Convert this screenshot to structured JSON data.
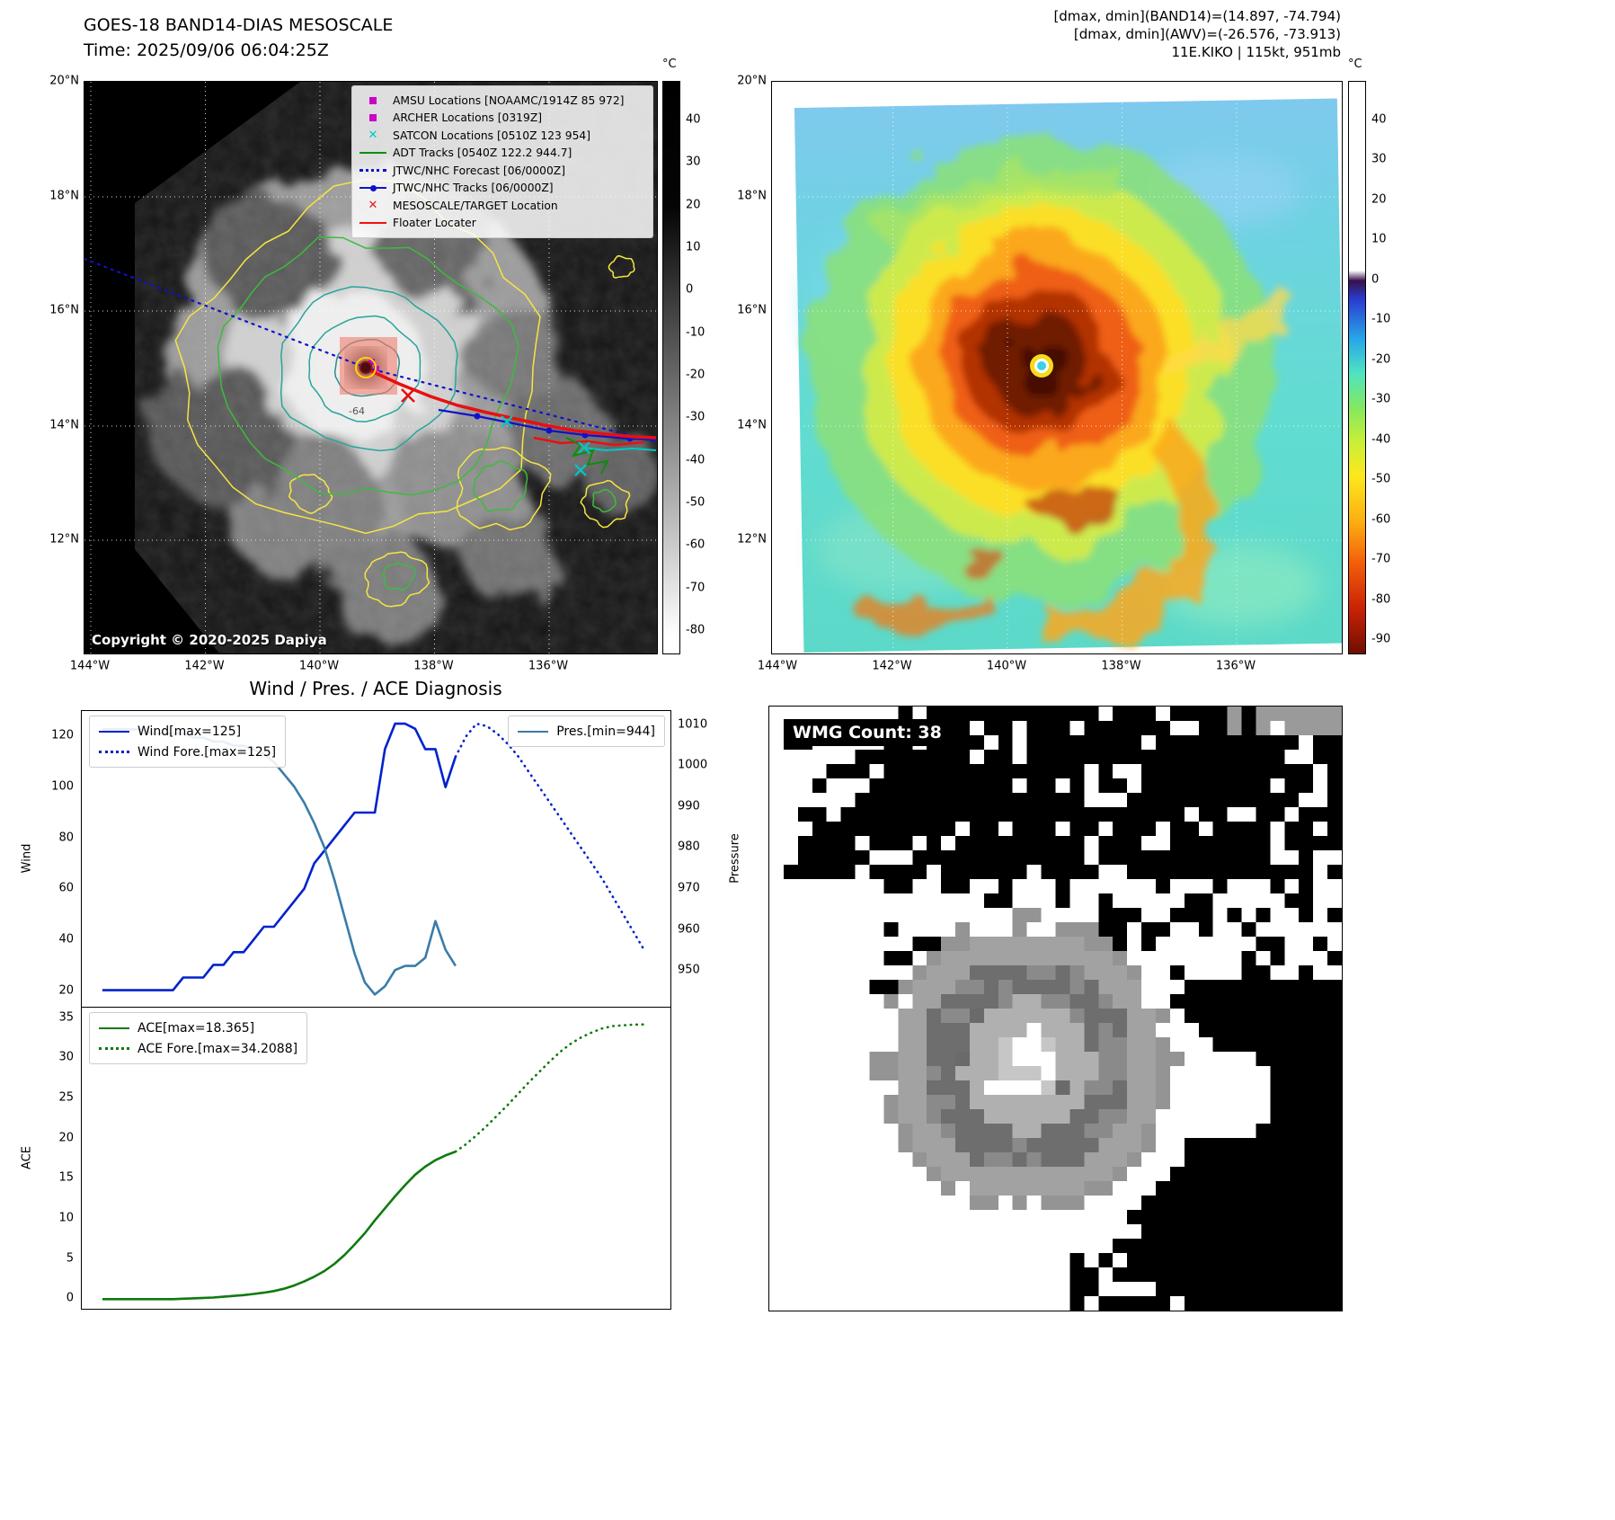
{
  "goes_panel": {
    "title": "GOES-18 BAND14-DIAS MESOSCALE",
    "time_line": "Time: 2025/09/06 06:04:25Z",
    "copyright": "Copyright © 2020-2025 Dapiya",
    "contour_label": "-64",
    "colorbar_unit": "°C",
    "colorbar_ticks": [
      40,
      30,
      20,
      10,
      0,
      -10,
      -20,
      -30,
      -40,
      -50,
      -60,
      -70,
      -80
    ],
    "lat_ticks": [
      "20°N",
      "18°N",
      "16°N",
      "14°N",
      "12°N"
    ],
    "lon_ticks": [
      "144°W",
      "142°W",
      "140°W",
      "138°W",
      "136°W"
    ],
    "legend": [
      {
        "label": "AMSU Locations [NOAAMC/1914Z 85 972]",
        "marker": "square",
        "color": "#c800c8"
      },
      {
        "label": "ARCHER Locations [0319Z]",
        "marker": "square",
        "color": "#c800c8"
      },
      {
        "label": "SATCON Locations [0510Z 123 954]",
        "marker": "x",
        "color": "#00c8c8"
      },
      {
        "label": "ADT Tracks [0540Z 122.2 944.7]",
        "marker": "line",
        "color": "#0a8f0a"
      },
      {
        "label": "JTWC/NHC Forecast [06/0000Z]",
        "marker": "dotted-line",
        "color": "#1111cc"
      },
      {
        "label": "JTWC/NHC Tracks [06/0000Z]",
        "marker": "line-dot",
        "color": "#1111cc"
      },
      {
        "label": "MESOSCALE/TARGET Location",
        "marker": "x",
        "color": "#ee1111"
      },
      {
        "label": "Floater Locater",
        "marker": "line",
        "color": "#ee1111"
      }
    ]
  },
  "awv_panel": {
    "header_lines": [
      "[dmax, dmin](BAND14)=(14.897, -74.794)",
      "[dmax, dmin](AWV)=(-26.576, -73.913)",
      "11E.KIKO | 115kt, 951mb"
    ],
    "colorbar_unit": "°C",
    "colorbar_ticks": [
      40,
      30,
      20,
      10,
      0,
      -10,
      -20,
      -30,
      -40,
      -50,
      -60,
      -70,
      -80,
      -90
    ],
    "lat_ticks": [
      "20°N",
      "18°N",
      "16°N",
      "14°N",
      "12°N"
    ],
    "lon_ticks": [
      "144°W",
      "142°W",
      "140°W",
      "138°W",
      "136°W"
    ]
  },
  "wmg_panel": {
    "label": "WMG Count: 38"
  },
  "chart_data": [
    {
      "type": "line",
      "title": "Wind / Pres. / ACE Diagnosis",
      "ylabel_left": "Wind",
      "ylabel_right": "Pressure",
      "ylim_left": [
        13.5,
        130
      ],
      "ylim_right": [
        941,
        1013.5
      ],
      "yticks_left": [
        20,
        40,
        60,
        80,
        100,
        120
      ],
      "yticks_right": [
        950,
        960,
        970,
        980,
        990,
        1000,
        1010
      ],
      "legend_position": "upper-left and upper-right",
      "series": [
        {
          "name": "Wind[max=125]",
          "axis": "left",
          "style": "solid",
          "color": "#0022cc",
          "x_start": 3.5,
          "x_end": 63.5,
          "y": [
            20,
            20,
            20,
            20,
            20,
            20,
            20,
            20,
            25,
            25,
            25,
            30,
            30,
            35,
            35,
            40,
            45,
            45,
            50,
            55,
            60,
            70,
            75,
            80,
            85,
            90,
            90,
            90,
            115,
            125,
            125,
            123,
            115,
            115,
            100,
            112
          ]
        },
        {
          "name": "Wind Fore.[max=125]",
          "axis": "left",
          "style": "dotted",
          "color": "#0022cc",
          "x_start": 63.5,
          "x_end": 95.5,
          "y": [
            112,
            120,
            125,
            124,
            121,
            117,
            112,
            106,
            100,
            94,
            88,
            82,
            76,
            70,
            64,
            57,
            50,
            43,
            36
          ]
        },
        {
          "name": "Pres.[min=944]",
          "axis": "right",
          "style": "solid",
          "color": "#3a7ca8",
          "x_start": 3.5,
          "x_end": 63.5,
          "y": [
            1009,
            1009,
            1009,
            1009,
            1009,
            1008,
            1008,
            1008,
            1008,
            1007,
            1007,
            1006,
            1006,
            1005,
            1005,
            1004,
            1003,
            1001,
            998,
            995,
            991,
            986,
            980,
            972,
            963,
            954,
            947,
            944,
            946,
            950,
            951,
            951,
            953,
            962,
            955,
            951
          ]
        }
      ]
    },
    {
      "type": "line",
      "ylabel_left": "ACE",
      "ylim_left": [
        -1.2,
        36.3
      ],
      "yticks_left": [
        0,
        5,
        10,
        15,
        20,
        25,
        30,
        35
      ],
      "legend_position": "upper-left",
      "series": [
        {
          "name": "ACE[max=18.365]",
          "axis": "left",
          "style": "solid",
          "color": "#0e7a0e",
          "x_start": 3.5,
          "x_end": 63.5,
          "y": [
            0,
            0,
            0,
            0,
            0,
            0,
            0,
            0,
            0.05,
            0.1,
            0.15,
            0.2,
            0.3,
            0.4,
            0.5,
            0.65,
            0.8,
            1,
            1.3,
            1.7,
            2.2,
            2.8,
            3.5,
            4.4,
            5.5,
            6.8,
            8.2,
            9.8,
            11.3,
            12.8,
            14.2,
            15.5,
            16.5,
            17.3,
            17.9,
            18.365
          ]
        },
        {
          "name": "ACE Fore.[max=34.2088]",
          "axis": "left",
          "style": "dotted",
          "color": "#0e7a0e",
          "x_start": 63.5,
          "x_end": 95.5,
          "y": [
            18.365,
            19.3,
            20.4,
            21.6,
            22.9,
            24.2,
            25.6,
            27,
            28.3,
            29.6,
            30.8,
            31.8,
            32.6,
            33.2,
            33.7,
            34,
            34.1,
            34.18,
            34.2088
          ]
        }
      ]
    }
  ]
}
